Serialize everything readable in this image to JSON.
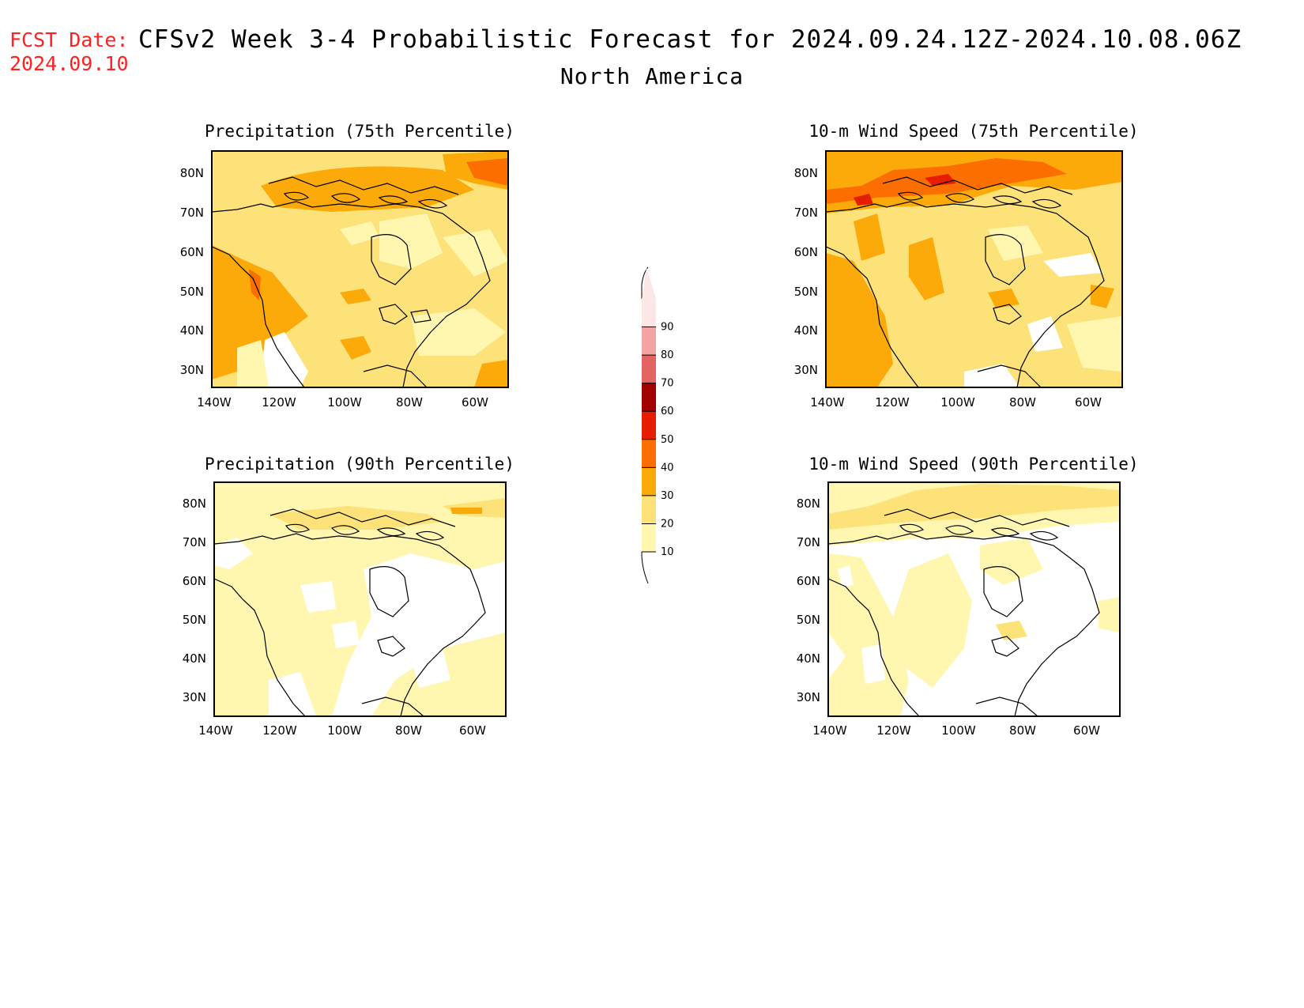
{
  "header": {
    "fcst_label": "FCST Date:",
    "fcst_date": "2024.09.10",
    "title": "CFSv2 Week 3-4 Probabilistic Forecast for 2024.09.24.12Z-2024.10.08.06Z",
    "region": "North America"
  },
  "axes": {
    "lon_ticks": [
      "140W",
      "120W",
      "100W",
      "80W",
      "60W"
    ],
    "lat_ticks": [
      "80N",
      "70N",
      "60N",
      "50N",
      "40N",
      "30N"
    ]
  },
  "panels": [
    {
      "id": "precip-75",
      "title": "Precipitation (75th Percentile)"
    },
    {
      "id": "wind-75",
      "title": "10-m Wind Speed (75th Percentile)"
    },
    {
      "id": "precip-90",
      "title": "Precipitation (90th Percentile)"
    },
    {
      "id": "wind-90",
      "title": "10-m Wind Speed (90th Percentile)"
    }
  ],
  "colorbar": {
    "labels": [
      "10",
      "20",
      "30",
      "40",
      "50",
      "60",
      "70",
      "80",
      "90"
    ],
    "colors": [
      "#fff7b0",
      "#fde27a",
      "#fca90a",
      "#fd6e00",
      "#e61d00",
      "#a30000",
      "#e46464",
      "#f4a3a3",
      "#fde6e6"
    ]
  },
  "palette": {
    "white": "#ffffff",
    "c1": "#fff7b0",
    "c2": "#fde27a",
    "c3": "#fca90a",
    "c4": "#fd6e00",
    "c5": "#e61d00"
  }
}
